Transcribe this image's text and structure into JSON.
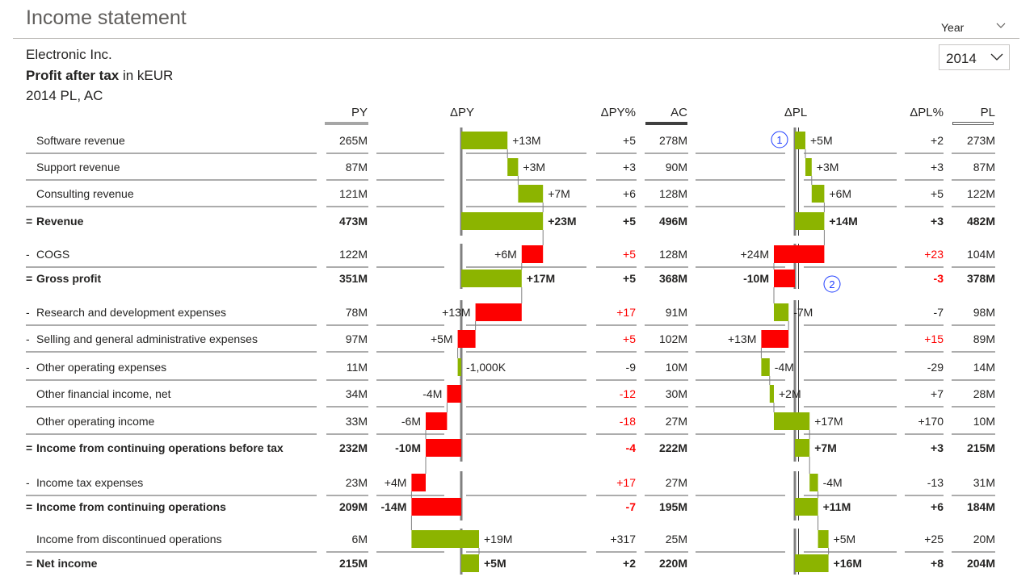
{
  "header": {
    "title": "Income statement",
    "company": "Electronic Inc.",
    "measure_bold": "Profit after tax",
    "measure_unit": " in kEUR",
    "scenario": "2014 PL, AC"
  },
  "filter": {
    "label": "Year",
    "value": "2014"
  },
  "columns": {
    "py": "PY",
    "dpy": "ΔPY",
    "dpy_pct": "ΔPY%",
    "ac": "AC",
    "dpl": "ΔPL",
    "dpl_pct": "ΔPL%",
    "pl": "PL"
  },
  "markers": [
    "1",
    "2"
  ],
  "colors": {
    "positive": "#8cb400",
    "negative": "#fd0000",
    "axis": "#808080"
  },
  "rows": [
    {
      "label": "Software revenue",
      "prefix": "",
      "bold": false,
      "py": "265M",
      "dpy": "+13M",
      "dpy_pct": "+5",
      "dpy_pct_bad": false,
      "ac": "278M",
      "dpl": "+5M",
      "dpl_pct": "+2",
      "dpl_pct_bad": false,
      "pl": "273M"
    },
    {
      "label": "Support revenue",
      "prefix": "",
      "bold": false,
      "py": "87M",
      "dpy": "+3M",
      "dpy_pct": "+3",
      "dpy_pct_bad": false,
      "ac": "90M",
      "dpl": "+3M",
      "dpl_pct": "+3",
      "dpl_pct_bad": false,
      "pl": "87M"
    },
    {
      "label": "Consulting revenue",
      "prefix": "",
      "bold": false,
      "py": "121M",
      "dpy": "+7M",
      "dpy_pct": "+6",
      "dpy_pct_bad": false,
      "ac": "128M",
      "dpl": "+6M",
      "dpl_pct": "+5",
      "dpl_pct_bad": false,
      "pl": "122M"
    },
    {
      "label": "Revenue",
      "prefix": "=",
      "bold": true,
      "py": "473M",
      "dpy": "+23M",
      "dpy_pct": "+5",
      "dpy_pct_bad": false,
      "ac": "496M",
      "dpl": "+14M",
      "dpl_pct": "+3",
      "dpl_pct_bad": false,
      "pl": "482M"
    },
    {
      "label": "COGS",
      "prefix": "-",
      "bold": false,
      "py": "122M",
      "dpy": "+6M",
      "dpy_pct": "+5",
      "dpy_pct_bad": true,
      "ac": "128M",
      "dpl": "+24M",
      "dpl_pct": "+23",
      "dpl_pct_bad": true,
      "pl": "104M"
    },
    {
      "label": "Gross profit",
      "prefix": "=",
      "bold": true,
      "py": "351M",
      "dpy": "+17M",
      "dpy_pct": "+5",
      "dpy_pct_bad": false,
      "ac": "368M",
      "dpl": "-10M",
      "dpl_pct": "-3",
      "dpl_pct_bad": true,
      "pl": "378M"
    },
    {
      "label": "Research and development expenses",
      "prefix": "-",
      "bold": false,
      "py": "78M",
      "dpy": "+13M",
      "dpy_pct": "+17",
      "dpy_pct_bad": true,
      "ac": "91M",
      "dpl": "-7M",
      "dpl_pct": "-7",
      "dpl_pct_bad": false,
      "pl": "98M"
    },
    {
      "label": "Selling and general administrative expenses",
      "prefix": "-",
      "bold": false,
      "py": "97M",
      "dpy": "+5M",
      "dpy_pct": "+5",
      "dpy_pct_bad": true,
      "ac": "102M",
      "dpl": "+13M",
      "dpl_pct": "+15",
      "dpl_pct_bad": true,
      "pl": "89M"
    },
    {
      "label": "Other operating expenses",
      "prefix": "-",
      "bold": false,
      "py": "11M",
      "dpy": "-1,000K",
      "dpy_pct": "-9",
      "dpy_pct_bad": false,
      "ac": "10M",
      "dpl": "-4M",
      "dpl_pct": "-29",
      "dpl_pct_bad": false,
      "pl": "14M"
    },
    {
      "label": "Other financial income, net",
      "prefix": "",
      "bold": false,
      "py": "34M",
      "dpy": "-4M",
      "dpy_pct": "-12",
      "dpy_pct_bad": true,
      "ac": "30M",
      "dpl": "+2M",
      "dpl_pct": "+7",
      "dpl_pct_bad": false,
      "pl": "28M"
    },
    {
      "label": "Other operating income",
      "prefix": "",
      "bold": false,
      "py": "33M",
      "dpy": "-6M",
      "dpy_pct": "-18",
      "dpy_pct_bad": true,
      "ac": "27M",
      "dpl": "+17M",
      "dpl_pct": "+170",
      "dpl_pct_bad": false,
      "pl": "10M"
    },
    {
      "label": "Income from continuing operations before tax",
      "prefix": "=",
      "bold": true,
      "py": "232M",
      "dpy": "-10M",
      "dpy_pct": "-4",
      "dpy_pct_bad": true,
      "ac": "222M",
      "dpl": "+7M",
      "dpl_pct": "+3",
      "dpl_pct_bad": false,
      "pl": "215M"
    },
    {
      "label": "Income tax expenses",
      "prefix": "-",
      "bold": false,
      "py": "23M",
      "dpy": "+4M",
      "dpy_pct": "+17",
      "dpy_pct_bad": true,
      "ac": "27M",
      "dpl": "-4M",
      "dpl_pct": "-13",
      "dpl_pct_bad": false,
      "pl": "31M"
    },
    {
      "label": "Income from continuing operations",
      "prefix": "=",
      "bold": true,
      "py": "209M",
      "dpy": "-14M",
      "dpy_pct": "-7",
      "dpy_pct_bad": true,
      "ac": "195M",
      "dpl": "+11M",
      "dpl_pct": "+6",
      "dpl_pct_bad": false,
      "pl": "184M"
    },
    {
      "label": "Income from discontinued operations",
      "prefix": "",
      "bold": false,
      "py": "6M",
      "dpy": "+19M",
      "dpy_pct": "+317",
      "dpy_pct_bad": false,
      "ac": "25M",
      "dpl": "+5M",
      "dpl_pct": "+25",
      "dpl_pct_bad": false,
      "pl": "20M"
    },
    {
      "label": "Net income",
      "prefix": "=",
      "bold": true,
      "py": "215M",
      "dpy": "+5M",
      "dpy_pct": "+2",
      "dpy_pct_bad": false,
      "ac": "220M",
      "dpl": "+16M",
      "dpl_pct": "+8",
      "dpl_pct_bad": false,
      "pl": "204M"
    }
  ],
  "chart_data": [
    {
      "type": "bar",
      "title": "ΔPY",
      "categories": [
        "Software revenue",
        "Support revenue",
        "Consulting revenue",
        "Revenue",
        "COGS",
        "Gross profit",
        "Research and development expenses",
        "Selling and general administrative expenses",
        "Other operating expenses",
        "Other financial income, net",
        "Other operating income",
        "Income from continuing operations before tax",
        "Income tax expenses",
        "Income from continuing operations",
        "Income from discontinued operations",
        "Net income"
      ],
      "values": [
        13,
        3,
        7,
        23,
        6,
        17,
        13,
        5,
        -1,
        -4,
        -6,
        -10,
        4,
        -14,
        19,
        5
      ],
      "unit": "M"
    },
    {
      "type": "bar",
      "title": "ΔPL",
      "categories": [
        "Software revenue",
        "Support revenue",
        "Consulting revenue",
        "Revenue",
        "COGS",
        "Gross profit",
        "Research and development expenses",
        "Selling and general administrative expenses",
        "Other operating expenses",
        "Other financial income, net",
        "Other operating income",
        "Income from continuing operations before tax",
        "Income tax expenses",
        "Income from continuing operations",
        "Income from discontinued operations",
        "Net income"
      ],
      "values": [
        5,
        3,
        6,
        14,
        24,
        -10,
        -7,
        13,
        -4,
        2,
        17,
        7,
        -4,
        11,
        5,
        16
      ],
      "unit": "M"
    }
  ]
}
